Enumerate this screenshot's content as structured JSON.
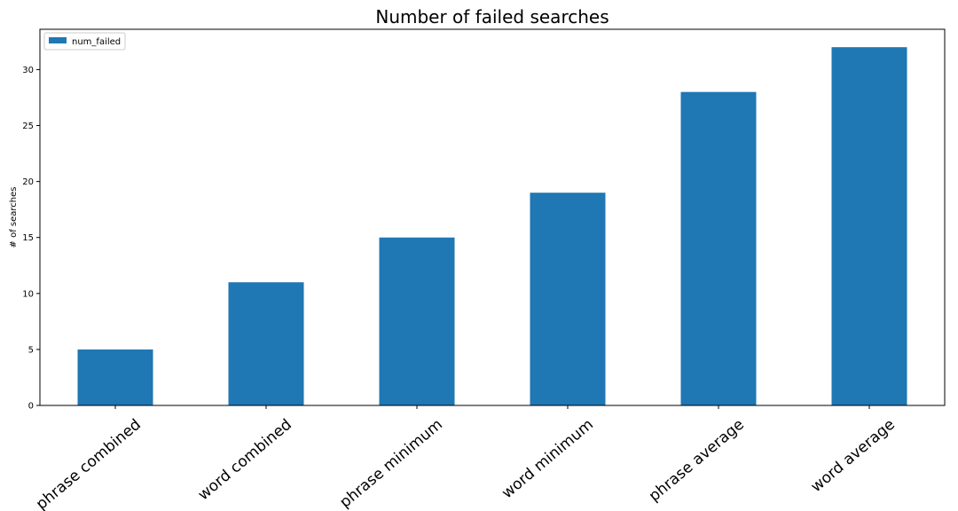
{
  "chart_data": {
    "type": "bar",
    "title": "Number of failed searches",
    "xlabel": "",
    "ylabel": "# of searches",
    "categories": [
      "phrase combined",
      "word combined",
      "phrase minimum",
      "word minimum",
      "phrase average",
      "word average"
    ],
    "series": [
      {
        "name": "num_failed",
        "values": [
          5,
          11,
          15,
          19,
          28,
          32
        ],
        "color": "#1f77b4"
      }
    ],
    "ylim": [
      0,
      33.6
    ],
    "yticks": [
      0,
      5,
      10,
      15,
      20,
      25,
      30
    ],
    "grid": false,
    "legend": "top-left"
  }
}
